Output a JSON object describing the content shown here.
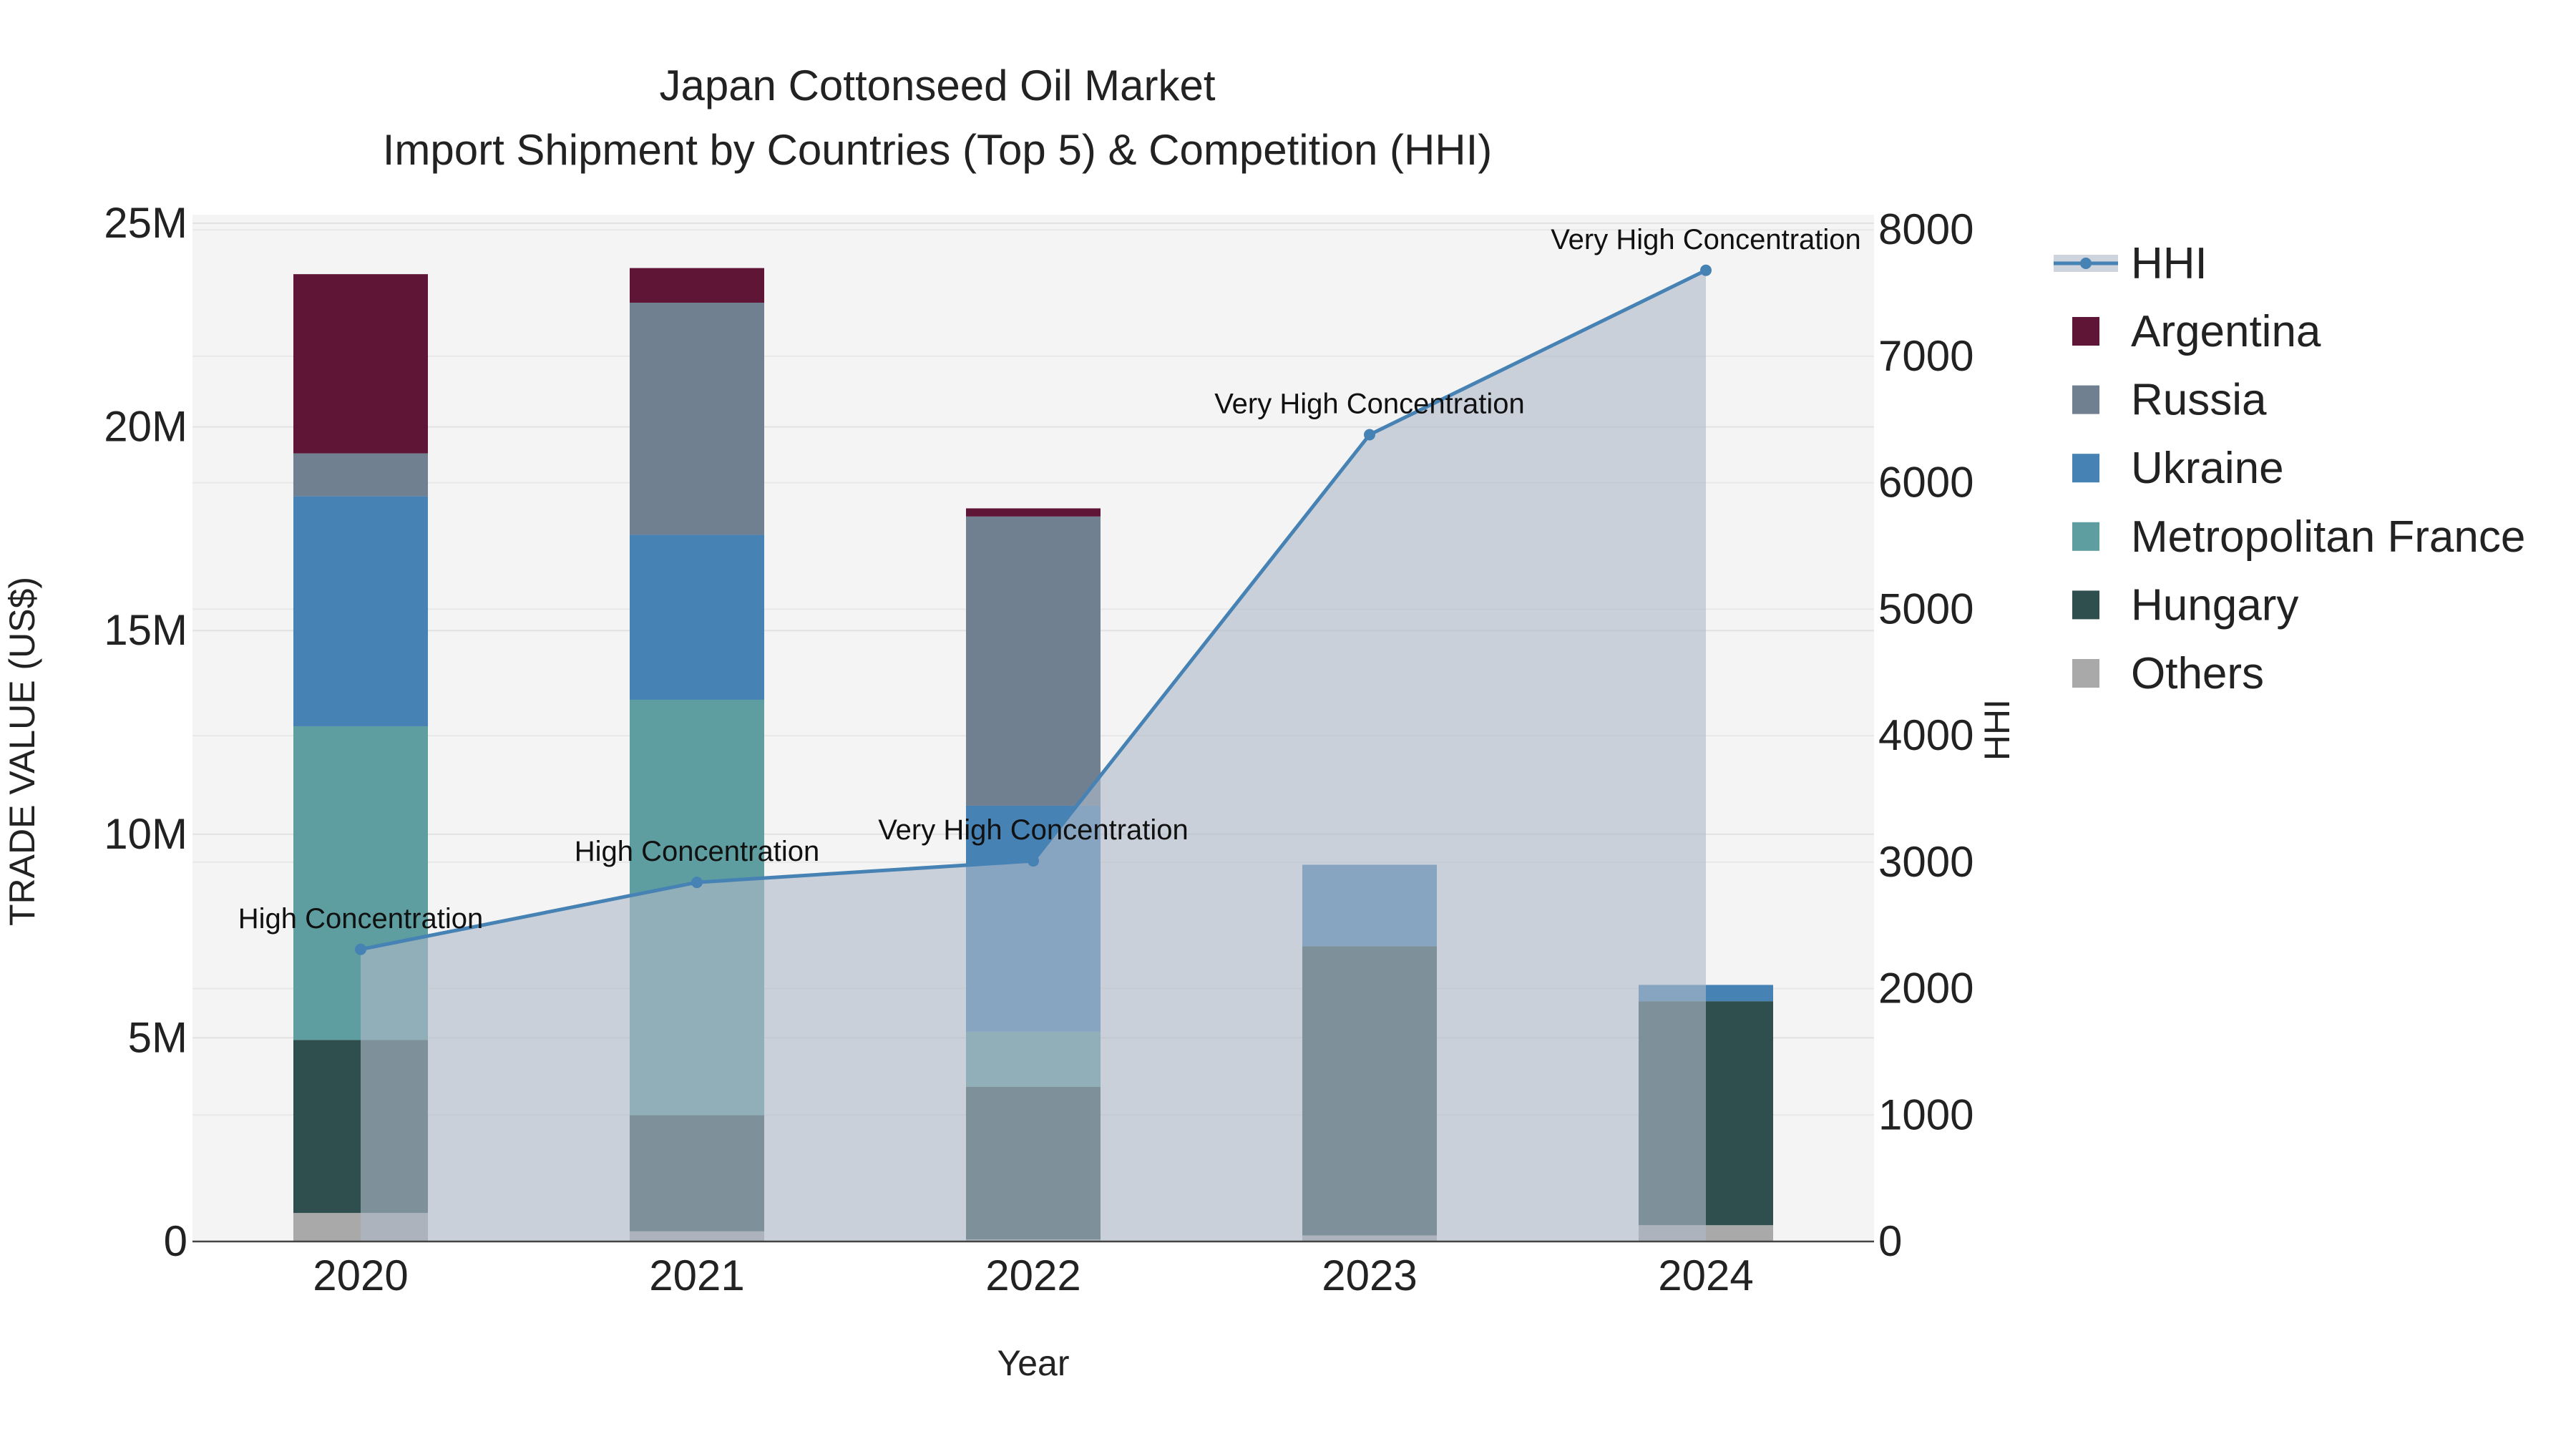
{
  "chart_data": {
    "type": "bar",
    "title_line1": "Japan Cottonseed Oil Market",
    "title_line2": "Import Shipment by Countries (Top 5) & Competition (HHI)",
    "xlabel": "Year",
    "ylabel": "TRADE VALUE (US$)",
    "y2label": "HHI",
    "categories": [
      "2020",
      "2021",
      "2022",
      "2023",
      "2024"
    ],
    "ylim": [
      0,
      25000000
    ],
    "y_ticks": [
      {
        "value": 0,
        "label": "0"
      },
      {
        "value": 5000000,
        "label": "5M"
      },
      {
        "value": 10000000,
        "label": "10M"
      },
      {
        "value": 15000000,
        "label": "15M"
      },
      {
        "value": 20000000,
        "label": "20M"
      },
      {
        "value": 25000000,
        "label": "25M"
      }
    ],
    "y2lim": [
      0,
      8120
    ],
    "y2_ticks": [
      0,
      1000,
      2000,
      3000,
      4000,
      5000,
      6000,
      7000,
      8000
    ],
    "series": [
      {
        "name": "Others",
        "color": "#a9a9a9",
        "values": [
          700000,
          250000,
          50000,
          150000,
          400000
        ]
      },
      {
        "name": "Hungary",
        "color": "#2f4f4f",
        "values": [
          4250000,
          2850000,
          3750000,
          7100000,
          5500000
        ]
      },
      {
        "name": "Metropolitan France",
        "color": "#5f9ea0",
        "values": [
          7700000,
          10200000,
          1350000,
          0,
          0
        ]
      },
      {
        "name": "Ukraine",
        "color": "#4682b4",
        "values": [
          5650000,
          4050000,
          5550000,
          2000000,
          400000
        ]
      },
      {
        "name": "Russia",
        "color": "#708090",
        "values": [
          1050000,
          5700000,
          7100000,
          0,
          0
        ]
      },
      {
        "name": "Argentina",
        "color": "#5f1535",
        "values": [
          4400000,
          850000,
          200000,
          0,
          0
        ]
      }
    ],
    "legend_order": [
      "Argentina",
      "Russia",
      "Ukraine",
      "Metropolitan France",
      "Hungary",
      "Others"
    ],
    "hhi": {
      "name": "HHI",
      "color": "#4682b4",
      "values": [
        2310,
        2840,
        3010,
        6380,
        7680
      ],
      "annotations": [
        "High Concentration",
        "High Concentration",
        "Very High Concentration",
        "Very High Concentration",
        "Very High Concentration"
      ]
    }
  }
}
